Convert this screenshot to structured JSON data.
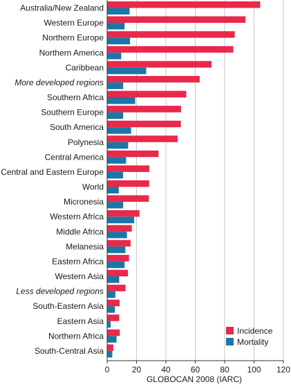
{
  "chart_data": {
    "type": "bar",
    "orientation": "horizontal",
    "categories": [
      "Australia/New Zealand",
      "Western Europe",
      "Northern Europe",
      "Northern America",
      "Caribbean",
      "More developed regions",
      "Southern Africa",
      "Southern Europe",
      "South America",
      "Polynesia",
      "Central America",
      "Central and Eastern Europe",
      "World",
      "Micronesia",
      "Western Africa",
      "Middle Africa",
      "Melanesia",
      "Eastern Africa",
      "Western Asia",
      "Less developed regions",
      "South-Eastern Asia",
      "Eastern Asia",
      "Northern Africa",
      "South-Central Asia"
    ],
    "italic_categories": [
      "More developed regions",
      "Less developed regions"
    ],
    "series": [
      {
        "name": "Incidence",
        "color": "#e8294a",
        "values": [
          104.2,
          94.2,
          86.9,
          85.9,
          71.1,
          63.0,
          53.9,
          50.3,
          50.2,
          48.0,
          35.0,
          28.7,
          28.6,
          28.4,
          22.0,
          16.8,
          16.0,
          14.9,
          14.2,
          12.5,
          8.5,
          8.2,
          8.6,
          4.2
        ]
      },
      {
        "name": "Mortality",
        "color": "#1b76a8",
        "values": [
          15.3,
          11.9,
          15.6,
          9.6,
          26.6,
          10.9,
          19.1,
          10.9,
          16.3,
          14.3,
          12.9,
          10.8,
          7.9,
          10.9,
          18.4,
          13.5,
          12.4,
          11.9,
          8.2,
          5.6,
          5.3,
          2.4,
          6.4,
          3.5
        ]
      }
    ],
    "xlim": [
      0,
      120
    ],
    "xticks": [
      0,
      20,
      40,
      60,
      80,
      100,
      120
    ],
    "xlabel": "GLOBOCAN 2008 (IARC)",
    "legend_position": "bottom-right",
    "grid": true
  }
}
